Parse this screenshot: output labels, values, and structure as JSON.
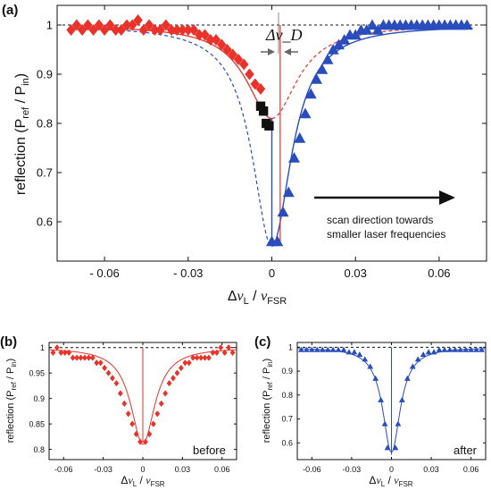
{
  "chart_data": [
    {
      "panel": "(a)",
      "type": "scatter",
      "xlabel": "Δν_L / ν_FSR",
      "ylabel": "reflection (P_ref / P_in)",
      "xticks": [
        "- 0.06",
        "- 0.03",
        "0",
        "0.03",
        "0.06"
      ],
      "yticks": [
        "0.6",
        "0.7",
        "0.8",
        "0.9",
        "1"
      ],
      "xlim": [
        -0.077,
        0.077
      ],
      "ylim": [
        0.52,
        1.04
      ],
      "grid": false,
      "annotations": {
        "delta_nu_d": "Δν_D",
        "scan_text_line1": "scan direction towards",
        "scan_text_line2": "smaller laser frequencies"
      },
      "series": [
        {
          "marker": "diamond",
          "color": "#e8322a",
          "x": [
            -0.072,
            -0.07,
            -0.068,
            -0.066,
            -0.064,
            -0.062,
            -0.06,
            -0.058,
            -0.056,
            -0.054,
            -0.052,
            -0.05,
            -0.048,
            -0.046,
            -0.044,
            -0.042,
            -0.04,
            -0.038,
            -0.036,
            -0.034,
            -0.032,
            -0.03,
            -0.028,
            -0.026,
            -0.024,
            -0.022,
            -0.02,
            -0.018,
            -0.016,
            -0.014,
            -0.012,
            -0.01,
            -0.008,
            -0.006,
            -0.004
          ],
          "y": [
            0.99,
            1.0,
            0.99,
            1.0,
            0.99,
            1.0,
            0.99,
            1.0,
            0.99,
            0.99,
            1.0,
            1.0,
            1.01,
            0.99,
            1.0,
            0.99,
            0.99,
            1.0,
            0.99,
            0.99,
            0.99,
            0.99,
            0.99,
            0.98,
            0.98,
            0.97,
            0.97,
            0.96,
            0.95,
            0.94,
            0.93,
            0.92,
            0.9,
            0.88,
            0.87
          ]
        },
        {
          "marker": "square",
          "color": "#111111",
          "x": [
            -0.004,
            -0.003,
            -0.002,
            -0.001
          ],
          "y": [
            0.835,
            0.825,
            0.8,
            0.795
          ]
        },
        {
          "marker": "triangle",
          "color": "#2a4dbd",
          "x": [
            0.0,
            0.002,
            0.004,
            0.006,
            0.008,
            0.01,
            0.012,
            0.014,
            0.016,
            0.018,
            0.02,
            0.022,
            0.024,
            0.026,
            0.028,
            0.03,
            0.032,
            0.034,
            0.036,
            0.038,
            0.04,
            0.042,
            0.044,
            0.046,
            0.048,
            0.05,
            0.052,
            0.054,
            0.056,
            0.058,
            0.06,
            0.062,
            0.064,
            0.066,
            0.068,
            0.07
          ],
          "y": [
            0.56,
            0.56,
            0.62,
            0.66,
            0.73,
            0.77,
            0.82,
            0.86,
            0.89,
            0.91,
            0.93,
            0.95,
            0.96,
            0.97,
            0.98,
            0.98,
            0.99,
            0.99,
            1.0,
            0.99,
            1.0,
            1.0,
            1.0,
            1.0,
            1.0,
            1.0,
            1.0,
            1.0,
            1.0,
            1.0,
            1.0,
            1.0,
            1.0,
            1.0,
            1.0,
            1.0
          ]
        }
      ]
    },
    {
      "panel": "(b)",
      "type": "scatter",
      "xlabel": "Δν_L / ν_FSR",
      "ylabel": "reflection (P_ref / P_in)",
      "xticks": [
        "-0.06",
        "-0.03",
        "0",
        "0.03",
        "0.06"
      ],
      "yticks": [
        "0.8",
        "0.85",
        "0.9",
        "0.95",
        "1"
      ],
      "xlim": [
        -0.071,
        0.071
      ],
      "ylim": [
        0.78,
        1.01
      ],
      "text": "before",
      "series": [
        {
          "marker": "diamond",
          "color": "#e8322a",
          "x": [
            -0.068,
            -0.065,
            -0.062,
            -0.059,
            -0.056,
            -0.053,
            -0.05,
            -0.047,
            -0.044,
            -0.041,
            -0.038,
            -0.035,
            -0.032,
            -0.029,
            -0.026,
            -0.023,
            -0.02,
            -0.017,
            -0.014,
            -0.011,
            -0.008,
            -0.005,
            -0.002,
            0.002,
            0.005,
            0.008,
            0.011,
            0.014,
            0.017,
            0.02,
            0.023,
            0.026,
            0.029,
            0.032,
            0.035,
            0.038,
            0.041,
            0.044,
            0.047,
            0.05,
            0.053,
            0.056,
            0.059,
            0.062,
            0.065,
            0.068
          ],
          "y": [
            0.99,
            1.0,
            0.99,
            0.99,
            0.99,
            0.98,
            0.98,
            0.98,
            0.98,
            0.98,
            0.98,
            0.97,
            0.97,
            0.96,
            0.95,
            0.94,
            0.93,
            0.91,
            0.89,
            0.87,
            0.85,
            0.83,
            0.815,
            0.815,
            0.83,
            0.85,
            0.87,
            0.89,
            0.91,
            0.93,
            0.94,
            0.95,
            0.96,
            0.97,
            0.97,
            0.98,
            0.98,
            0.98,
            0.98,
            0.98,
            0.99,
            0.99,
            1.0,
            0.99,
            1.0,
            0.99
          ]
        }
      ]
    },
    {
      "panel": "(c)",
      "type": "scatter",
      "xlabel": "Δν_L / ν_FSR",
      "ylabel": "reflection (P_ref / P_in)",
      "xticks": [
        "-0.06",
        "-0.03",
        "0",
        "0.03",
        "0.06"
      ],
      "yticks": [
        "0.6",
        "0.7",
        "0.8",
        "0.9",
        "1"
      ],
      "xlim": [
        -0.071,
        0.071
      ],
      "ylim": [
        0.53,
        1.02
      ],
      "text": "after",
      "series": [
        {
          "marker": "triangle",
          "color": "#2a4dbd",
          "x": [
            -0.068,
            -0.064,
            -0.06,
            -0.056,
            -0.052,
            -0.048,
            -0.044,
            -0.04,
            -0.036,
            -0.032,
            -0.028,
            -0.024,
            -0.02,
            -0.016,
            -0.012,
            -0.008,
            -0.005,
            -0.003,
            0.003,
            0.005,
            0.008,
            0.012,
            0.016,
            0.02,
            0.024,
            0.028,
            0.032,
            0.036,
            0.04,
            0.044,
            0.048,
            0.052,
            0.056,
            0.06,
            0.064,
            0.068
          ],
          "y": [
            0.99,
            0.99,
            0.99,
            0.99,
            0.99,
            0.99,
            0.99,
            0.99,
            0.99,
            0.98,
            0.98,
            0.97,
            0.95,
            0.92,
            0.87,
            0.78,
            0.68,
            0.58,
            0.58,
            0.68,
            0.78,
            0.87,
            0.92,
            0.95,
            0.97,
            0.98,
            0.98,
            0.99,
            0.99,
            0.99,
            0.99,
            0.99,
            0.99,
            0.99,
            0.99,
            0.99
          ]
        }
      ]
    }
  ]
}
